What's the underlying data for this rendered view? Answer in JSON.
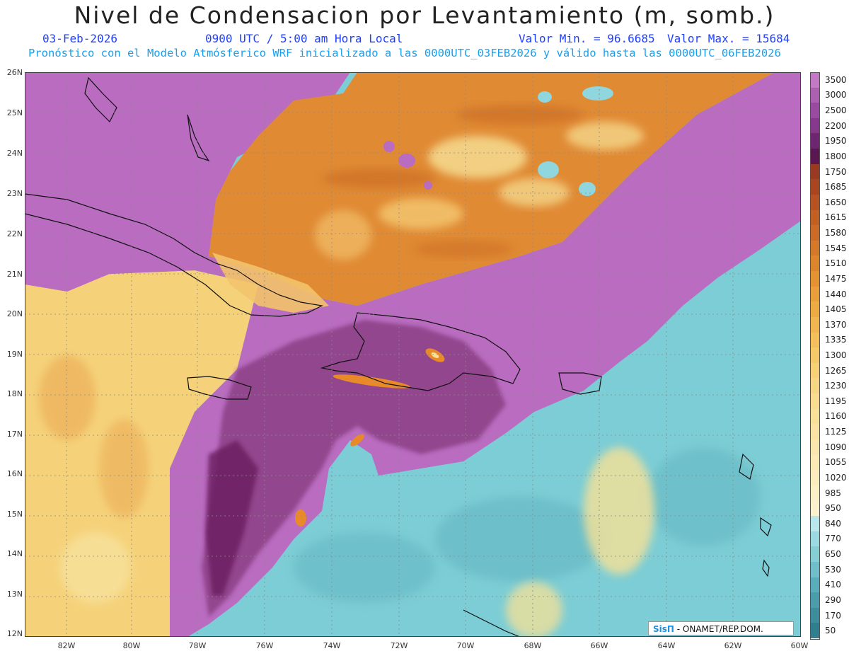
{
  "header": {
    "title": "Nivel de Condensacion por Levantamiento (m, somb.)",
    "date": "03-Feb-2026",
    "time": "0900 UTC / 5:00 am Hora Local",
    "min_label": "Valor Min. = 96.6685",
    "max_label": "Valor Max. = 15684",
    "model_line": "Pronóstico con el Modelo Atmósferico WRF inicializado a las 0000UTC_03FEB2026 y válido hasta las  0000UTC_06FEB2026"
  },
  "map": {
    "lat_labels": [
      "26N",
      "25N",
      "24N",
      "23N",
      "22N",
      "21N",
      "20N",
      "19N",
      "18N",
      "17N",
      "16N",
      "15N",
      "14N",
      "13N",
      "12N"
    ],
    "lon_labels": [
      "82W",
      "80W",
      "78W",
      "76W",
      "74W",
      "72W",
      "70W",
      "68W",
      "66W",
      "64W",
      "62W",
      "60W"
    ],
    "colors": {
      "purple": "#b96cc0",
      "dark_purple": "#7b2e6c",
      "orange": "#e08a34",
      "yellow": "#f7e196",
      "teal": "#7ccdd5"
    }
  },
  "colorbar": {
    "labels": [
      "3500",
      "3000",
      "2500",
      "2200",
      "1950",
      "1800",
      "1750",
      "1685",
      "1650",
      "1615",
      "1580",
      "1545",
      "1510",
      "1475",
      "1440",
      "1405",
      "1370",
      "1335",
      "1300",
      "1265",
      "1230",
      "1195",
      "1160",
      "1125",
      "1090",
      "1055",
      "1020",
      "985",
      "950",
      "840",
      "770",
      "650",
      "530",
      "410",
      "290",
      "170",
      "50"
    ],
    "colors": [
      "#c27ac4",
      "#ad5fb0",
      "#9a4aa0",
      "#86388c",
      "#6f2670",
      "#5a1850",
      "#9a3a22",
      "#a94521",
      "#b85222",
      "#c26024",
      "#cc6b26",
      "#d57828",
      "#dd852c",
      "#e49232",
      "#ea9f3a",
      "#eeab44",
      "#f1b64f",
      "#f4c05c",
      "#f6c968",
      "#f7d176",
      "#f8d784",
      "#f9dc90",
      "#f9e09b",
      "#fae4a4",
      "#fae7ad",
      "#fbeab6",
      "#fbedbe",
      "#fcf0c6",
      "#fcf3ce",
      "#b9e7ec",
      "#9cdae2",
      "#86cdd6",
      "#6fbec9",
      "#5aadba",
      "#4a9dab",
      "#3c8e9d",
      "#2f7f8e"
    ]
  },
  "credit": {
    "logo": "SisΠ",
    "text": "- ONAMET/REP.DOM."
  }
}
